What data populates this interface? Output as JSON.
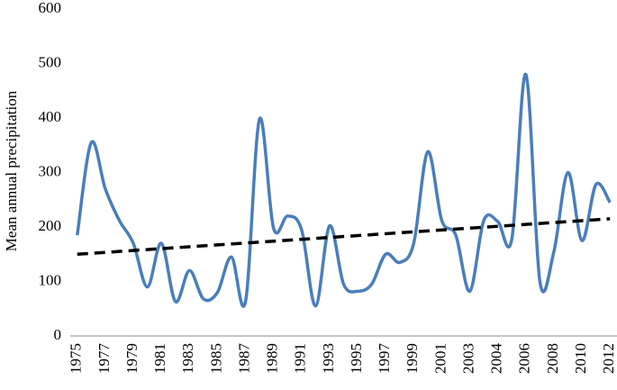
{
  "chart_data": {
    "type": "line",
    "y_label": "Mean annual  precipitation",
    "categories": [
      "1975",
      null,
      "1977",
      null,
      "1979",
      null,
      "1981",
      null,
      "1983",
      null,
      "1985",
      null,
      "1987",
      null,
      "1989",
      null,
      "1991",
      null,
      "1993",
      null,
      "1995",
      null,
      "1997",
      null,
      "1999",
      null,
      "2001",
      null,
      "2003",
      null,
      "2004",
      null,
      "2006",
      null,
      "2008",
      null,
      "2010",
      null,
      "2012"
    ],
    "values": [
      185,
      355,
      270,
      212,
      170,
      90,
      170,
      63,
      120,
      68,
      80,
      145,
      63,
      398,
      198,
      220,
      195,
      55,
      202,
      95,
      82,
      95,
      150,
      135,
      170,
      338,
      212,
      185,
      82,
      212,
      210,
      178,
      480,
      100,
      155,
      300,
      175,
      278,
      245
    ],
    "color": "#4a7ebb",
    "trendline": {
      "color": "#000000",
      "values": [
        150,
        215
      ]
    },
    "ylim": [
      0,
      600
    ],
    "yticks": [
      0,
      100,
      200,
      300,
      400,
      500,
      600
    ],
    "grid": false
  }
}
